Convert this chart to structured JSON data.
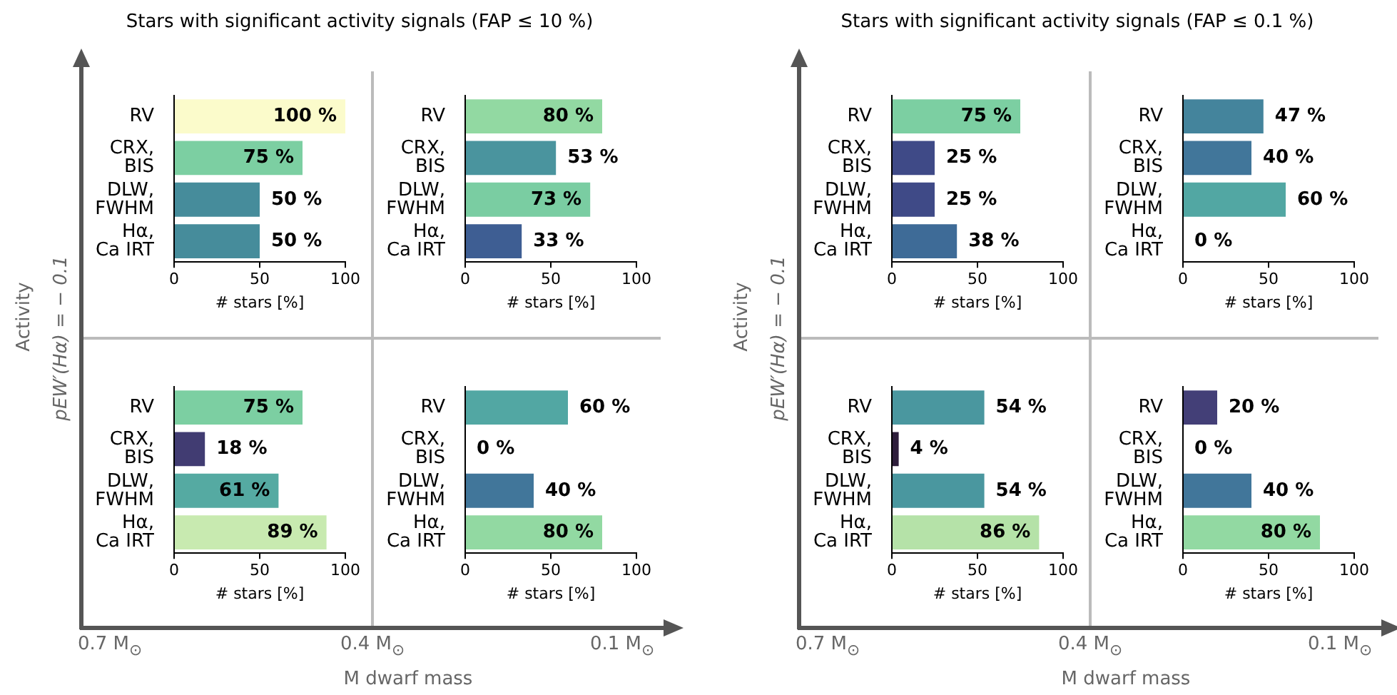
{
  "chart_data": [
    {
      "type": "bar",
      "orientation": "horizontal",
      "title": "Stars with significant activity signals (FAP ≤ 10 %)",
      "annotations": [
        "Activity",
        "pEW′(Hα) = − 0.1",
        "0.7 M$_{⊙}$",
        "0.4 M$_{⊙}$",
        "0.1 M$_{⊙}$",
        "M dwarf mass"
      ],
      "categories": [
        "RV",
        "CRX, BIS",
        "DLW, FWHM",
        "Hα, Ca IRT"
      ],
      "values": [
        100,
        75,
        50,
        50
      ],
      "colors": [
        "#fbfbcb",
        "#7ccfa2",
        "#468c9b",
        "#468c9b"
      ],
      "value_labels": [
        "100 %",
        "75 %",
        "50 %",
        "50 %"
      ],
      "xlabel": "# stars [%]",
      "xlim": [
        0,
        100
      ],
      "xticks": [
        0,
        50,
        100
      ]
    },
    {
      "type": "bar",
      "orientation": "horizontal",
      "categories": [
        "RV",
        "CRX, BIS",
        "DLW, FWHM",
        "Hα, Ca IRT"
      ],
      "values": [
        80,
        53,
        73,
        33
      ],
      "colors": [
        "#92d9a2",
        "#4a949e",
        "#7acda2",
        "#3e5e93"
      ],
      "value_labels": [
        "80 %",
        "53 %",
        "73 %",
        "33 %"
      ],
      "xlabel": "# stars [%]",
      "xlim": [
        0,
        100
      ],
      "xticks": [
        0,
        50,
        100
      ]
    },
    {
      "type": "bar",
      "orientation": "horizontal",
      "categories": [
        "RV",
        "CRX, BIS",
        "DLW, FWHM",
        "Hα, Ca IRT"
      ],
      "values": [
        75,
        18,
        61,
        89
      ],
      "colors": [
        "#7ccfa2",
        "#413c72",
        "#55aaa2",
        "#c8eab0"
      ],
      "value_labels": [
        "75 %",
        "18 %",
        "61 %",
        "89 %"
      ],
      "xlabel": "# stars [%]",
      "xlim": [
        0,
        100
      ],
      "xticks": [
        0,
        50,
        100
      ]
    },
    {
      "type": "bar",
      "orientation": "horizontal",
      "categories": [
        "RV",
        "CRX, BIS",
        "DLW, FWHM",
        "Hα, Ca IRT"
      ],
      "values": [
        60,
        0,
        40,
        80
      ],
      "colors": [
        "#52a7a3",
        "#52a7a3",
        "#41769a",
        "#92d9a2"
      ],
      "value_labels": [
        "60 %",
        "0 %",
        "40 %",
        "80 %"
      ],
      "xlabel": "# stars [%]",
      "xlim": [
        0,
        100
      ],
      "xticks": [
        0,
        50,
        100
      ]
    },
    {
      "type": "bar",
      "orientation": "horizontal",
      "title": "Stars with significant activity signals (FAP ≤ 0.1 %)",
      "annotations": [
        "Activity",
        "pEW′(Hα) = − 0.1",
        "0.7 M$_{⊙}$",
        "0.4 M$_{⊙}$",
        "0.1 M$_{⊙}$",
        "M dwarf mass"
      ],
      "categories": [
        "RV",
        "CRX, BIS",
        "DLW, FWHM",
        "Hα, Ca IRT"
      ],
      "values": [
        75,
        25,
        25,
        38
      ],
      "colors": [
        "#7ccfa2",
        "#3f4a87",
        "#3f4a87",
        "#3e6b97"
      ],
      "value_labels": [
        "75 %",
        "25 %",
        "25 %",
        "38 %"
      ],
      "xlabel": "# stars [%]",
      "xlim": [
        0,
        100
      ],
      "xticks": [
        0,
        50,
        100
      ]
    },
    {
      "type": "bar",
      "orientation": "horizontal",
      "categories": [
        "RV",
        "CRX, BIS",
        "DLW, FWHM",
        "Hα, Ca IRT"
      ],
      "values": [
        47,
        40,
        60,
        0
      ],
      "colors": [
        "#44849c",
        "#41769a",
        "#52a7a3",
        "#41769a"
      ],
      "value_labels": [
        "47 %",
        "40 %",
        "60 %",
        "0 %"
      ],
      "xlabel": "# stars [%]",
      "xlim": [
        0,
        100
      ],
      "xticks": [
        0,
        50,
        100
      ]
    },
    {
      "type": "bar",
      "orientation": "horizontal",
      "categories": [
        "RV",
        "CRX, BIS",
        "DLW, FWHM",
        "Hα, Ca IRT"
      ],
      "values": [
        54,
        4,
        54,
        86
      ],
      "colors": [
        "#4a979f",
        "#2e1e3b",
        "#4a979f",
        "#b5e2a8"
      ],
      "value_labels": [
        "54 %",
        "4 %",
        "54 %",
        "86 %"
      ],
      "xlabel": "# stars [%]",
      "xlim": [
        0,
        100
      ],
      "xticks": [
        0,
        50,
        100
      ]
    },
    {
      "type": "bar",
      "orientation": "horizontal",
      "categories": [
        "RV",
        "CRX, BIS",
        "DLW, FWHM",
        "Hα, Ca IRT"
      ],
      "values": [
        20,
        0,
        40,
        80
      ],
      "colors": [
        "#433f77",
        "#433f77",
        "#41769a",
        "#92d9a2"
      ],
      "value_labels": [
        "20 %",
        "0 %",
        "40 %",
        "80 %"
      ],
      "xlabel": "# stars [%]",
      "xlim": [
        0,
        100
      ],
      "xticks": [
        0,
        50,
        100
      ]
    }
  ]
}
